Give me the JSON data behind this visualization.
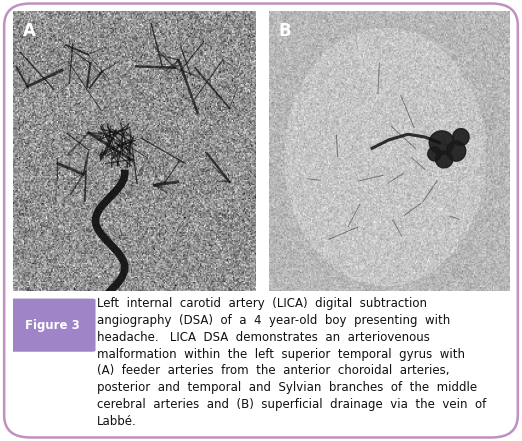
{
  "figure_label": "Figure 3",
  "figure_label_bg": "#a084c8",
  "figure_label_color": "#ffffff",
  "caption_line1": "Left  internal  carotid  artery  (LICA)  digital  subtraction",
  "caption_line2": "angiography  (DSA)  of  a  4  year-old  boy  presenting  with",
  "caption_line3": "headache.   LICA  DSA  demonstrates  an  arteriovenous",
  "caption_line4": "malformation  within  the  left  superior  temporal  gyrus  with",
  "caption_line5": "(A)  feeder  arteries  from  the  anterior  choroidal  arteries,",
  "caption_line6": "posterior  and  temporal  and  Sylvian  branches  of  the  middle",
  "caption_line7": "cerebral  arteries  and  (B)  superficial  drainage  via  the  vein  of",
  "caption_line8": "Labbé.",
  "panel_A_label": "A",
  "panel_B_label": "B",
  "bg_color": "#ffffff",
  "border_color": "#c090c0",
  "figure_label_fontsize": 8.5,
  "caption_fontsize": 8.5,
  "label_fontsize": 12
}
